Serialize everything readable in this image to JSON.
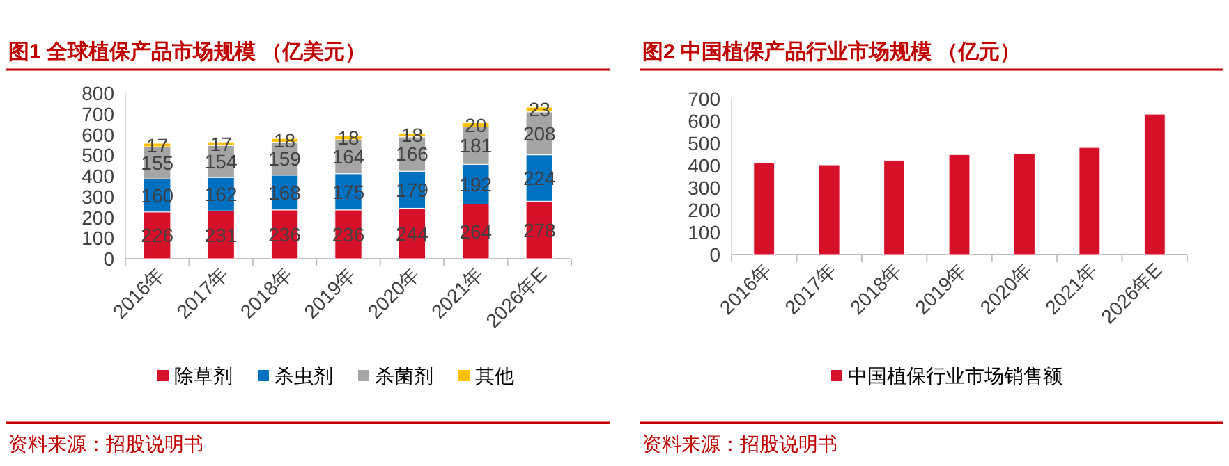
{
  "chart_data": [
    {
      "type": "bar",
      "title": "图1  全球植保产品市场规模  （亿美元）",
      "stacked": true,
      "data_labels": true,
      "legend": "bottom",
      "grid": false,
      "categories": [
        "2016年",
        "2017年",
        "2018年",
        "2019年",
        "2020年",
        "2021年",
        "2026年E"
      ],
      "series": [
        {
          "name": "除草剂",
          "color": "#d7102a",
          "values": [
            226,
            231,
            236,
            236,
            244,
            264,
            278
          ]
        },
        {
          "name": "杀虫剂",
          "color": "#0070c0",
          "values": [
            160,
            162,
            168,
            175,
            179,
            192,
            224
          ]
        },
        {
          "name": "杀菌剂",
          "color": "#a5a5a5",
          "values": [
            155,
            154,
            159,
            164,
            166,
            181,
            208
          ]
        },
        {
          "name": "其他",
          "color": "#ffc000",
          "values": [
            17,
            17,
            18,
            18,
            18,
            20,
            23
          ]
        }
      ],
      "ylim": [
        0,
        800
      ],
      "yticks": [
        0,
        100,
        200,
        300,
        400,
        500,
        600,
        700,
        800
      ],
      "annotations": [
        "资料来源：招股说明书"
      ]
    },
    {
      "type": "bar",
      "title": "图2  中国植保产品行业市场规模  （亿元）",
      "legend": "bottom",
      "grid": false,
      "categories": [
        "2016年",
        "2017年",
        "2018年",
        "2019年",
        "2020年",
        "2021年",
        "2026年E"
      ],
      "series": [
        {
          "name": "中国植保行业市场销售额",
          "color": "#d7102a",
          "values": [
            414,
            403,
            424,
            449,
            455,
            481,
            631
          ]
        }
      ],
      "ylim": [
        0,
        700
      ],
      "yticks": [
        0,
        100,
        200,
        300,
        400,
        500,
        600,
        700
      ],
      "annotations": [
        "资料来源：招股说明书"
      ]
    }
  ]
}
